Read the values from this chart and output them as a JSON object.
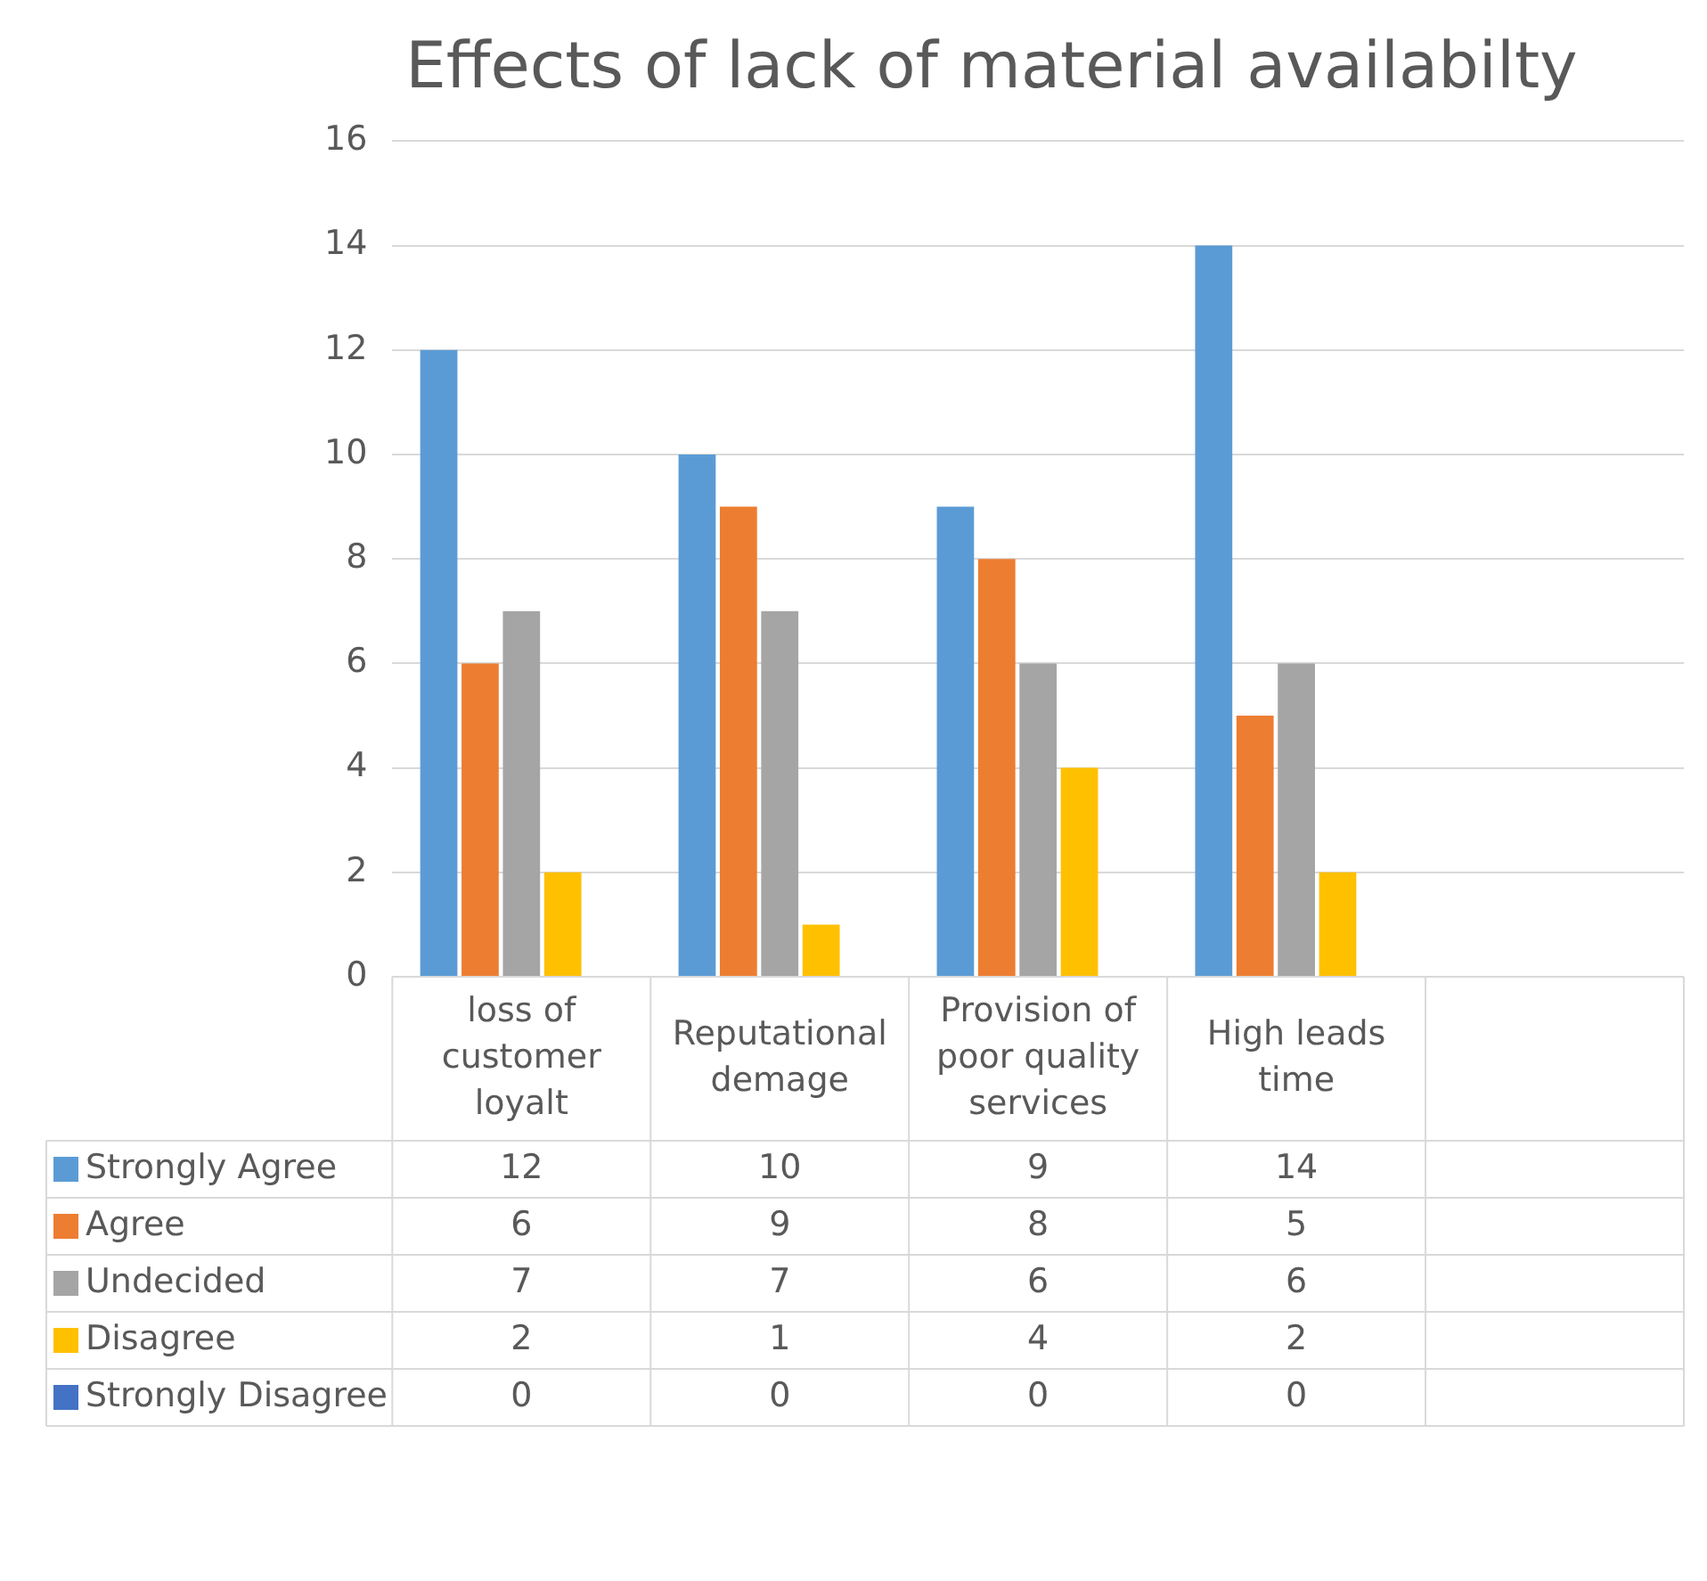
{
  "chart_data": {
    "type": "bar",
    "title": "Effects of lack of material availabilty",
    "categories": [
      "loss of customer loyalt",
      "Reputational demage",
      "Provision of poor quality services",
      "High leads time",
      null
    ],
    "series": [
      {
        "name": "Strongly Agree",
        "color": "#5b9bd5",
        "values": [
          12,
          10,
          9,
          14,
          null
        ]
      },
      {
        "name": "Agree",
        "color": "#ed7d31",
        "values": [
          6,
          9,
          8,
          5,
          null
        ]
      },
      {
        "name": "Undecided",
        "color": "#a5a5a5",
        "values": [
          7,
          7,
          6,
          6,
          null
        ]
      },
      {
        "name": "Disagree",
        "color": "#ffc000",
        "values": [
          2,
          1,
          4,
          2,
          null
        ]
      },
      {
        "name": "Strongly Disagree",
        "color": "#4472c4",
        "values": [
          0,
          0,
          0,
          0,
          null
        ]
      }
    ],
    "ylim": [
      0,
      16
    ],
    "yticks": [
      0,
      2,
      4,
      6,
      8,
      10,
      12,
      14,
      16
    ],
    "grid": "y",
    "legend": "bottom",
    "data_labels": true
  }
}
